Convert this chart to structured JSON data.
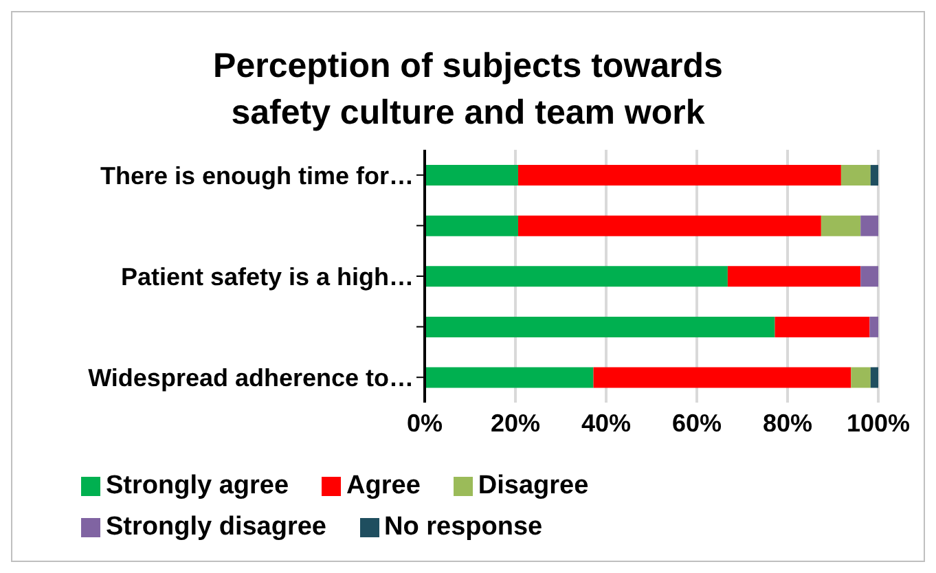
{
  "chart_data": {
    "type": "bar",
    "orientation": "horizontal",
    "stacked": true,
    "title": "Perception of subjects towards safety culture and team work",
    "categories": [
      "There is enough time for…",
      null,
      "Patient safety is a high…",
      null,
      "Widespread adherence to…"
    ],
    "series": [
      {
        "name": "Strongly agree",
        "color": "#00b050",
        "values": [
          20.6,
          20.6,
          66.8,
          77.2,
          37.2
        ]
      },
      {
        "name": "Agree",
        "color": "#ff0000",
        "values": [
          71.2,
          66.8,
          29.3,
          20.9,
          56.8
        ]
      },
      {
        "name": "Disagree",
        "color": "#9bbb59",
        "values": [
          6.5,
          8.7,
          0,
          0,
          4.3
        ]
      },
      {
        "name": "Strongly disagree",
        "color": "#8064a2",
        "values": [
          0,
          3.9,
          3.9,
          1.9,
          0
        ]
      },
      {
        "name": "No response",
        "color": "#1f4e5f",
        "values": [
          1.7,
          0,
          0,
          0,
          1.7
        ]
      }
    ],
    "xlim": [
      0,
      100
    ],
    "xticks": [
      {
        "value": 0,
        "label": "0%"
      },
      {
        "value": 20,
        "label": "20%"
      },
      {
        "value": 40,
        "label": "40%"
      },
      {
        "value": 60,
        "label": "60%"
      },
      {
        "value": 80,
        "label": "80%"
      },
      {
        "value": 100,
        "label": "100%"
      }
    ],
    "grid": "x",
    "legend": "bottom"
  }
}
